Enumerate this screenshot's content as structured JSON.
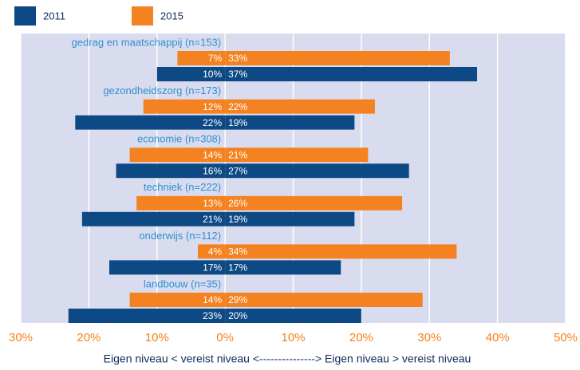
{
  "chart_data": {
    "type": "diverging-bar",
    "xlabel": "Eigen niveau < vereist niveau <---------------> Eigen niveau > vereist niveau",
    "categories": [
      "gedrag en maatschappij (n=153)",
      "gezondheidszorg (n=173)",
      "economie (n=308)",
      "techniek (n=222)",
      "onderwijs (n=112)",
      "landbouw (n=35)"
    ],
    "series": [
      {
        "name": "2015",
        "color": "#f58220",
        "below": {
          "values": [
            -7,
            -12,
            -14,
            -13,
            -4,
            -14
          ],
          "value_labels": [
            "7%",
            "12%",
            "14%",
            "13%",
            "4%",
            "14%"
          ]
        },
        "above": {
          "values": [
            33,
            22,
            21,
            26,
            34,
            29
          ],
          "value_labels": [
            "33%",
            "22%",
            "21%",
            "26%",
            "34%",
            "29%"
          ]
        }
      },
      {
        "name": "2011",
        "color": "#0d4a85",
        "below": {
          "values": [
            -10,
            -22,
            -16,
            -21,
            -17,
            -23
          ],
          "value_labels": [
            "10%",
            "22%",
            "16%",
            "21%",
            "17%",
            "23%"
          ]
        },
        "above": {
          "values": [
            37,
            19,
            27,
            19,
            17,
            20
          ],
          "value_labels": [
            "37%",
            "19%",
            "27%",
            "19%",
            "17%",
            "20%"
          ]
        }
      }
    ],
    "legend_order": [
      1,
      0
    ],
    "xlim": [
      -30,
      50
    ],
    "xticks": [
      {
        "value": -30,
        "label": "30%"
      },
      {
        "value": -20,
        "label": "20%"
      },
      {
        "value": -10,
        "label": "10%"
      },
      {
        "value": 0,
        "label": "0%"
      },
      {
        "value": 10,
        "label": "10%"
      },
      {
        "value": 20,
        "label": "20%"
      },
      {
        "value": 30,
        "label": "30%"
      },
      {
        "value": 40,
        "label": "40%"
      },
      {
        "value": 50,
        "label": "50%"
      }
    ],
    "grid": true
  }
}
